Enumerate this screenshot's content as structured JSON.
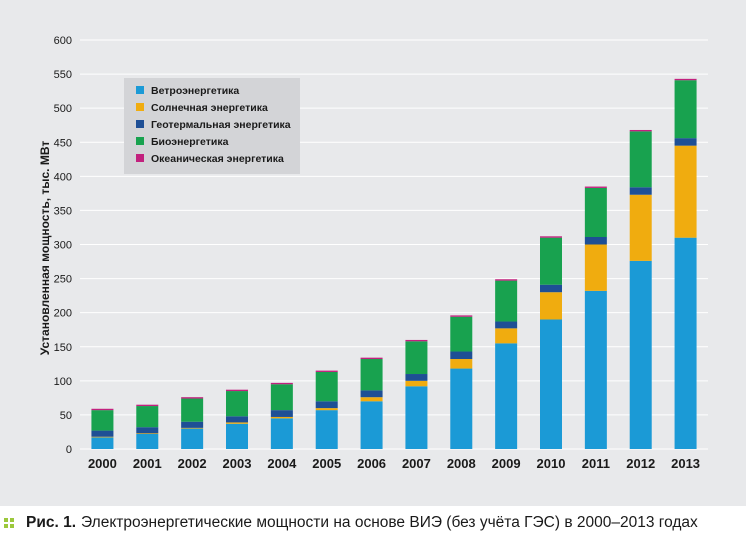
{
  "colors": {
    "wind": "#1b9ad6",
    "solar": "#f0ac0f",
    "geothermal": "#1e4f95",
    "bio": "#18a24f",
    "ocean": "#c2217e",
    "grid": "#ffffff",
    "legend_bg": "#d3d4d7",
    "caption_marker": "#9cc83c"
  },
  "caption": {
    "label": "Рис. 1.",
    "text": "Электроэнергетические мощности на основе ВИЭ (без учёта ГЭС) в 2000–2013 годах"
  },
  "chart_data": {
    "type": "bar",
    "stacked": true,
    "title": "",
    "xlabel": "",
    "ylabel": "Установленная мощность, тыс. МВт",
    "ylim": [
      0,
      600
    ],
    "yticks": [
      0,
      50,
      100,
      150,
      200,
      250,
      300,
      350,
      400,
      450,
      500,
      550,
      600
    ],
    "grid": true,
    "legend_position": "top-left",
    "categories": [
      "2000",
      "2001",
      "2002",
      "2003",
      "2004",
      "2005",
      "2006",
      "2007",
      "2008",
      "2009",
      "2010",
      "2011",
      "2012",
      "2013"
    ],
    "series": [
      {
        "name": "Ветроэнергетика",
        "color_key": "wind",
        "values": [
          17,
          22,
          30,
          37,
          45,
          57,
          70,
          92,
          118,
          155,
          190,
          232,
          276,
          310
        ]
      },
      {
        "name": "Солнечная энергетика",
        "color_key": "solar",
        "values": [
          1,
          1,
          1,
          2,
          2,
          3,
          6,
          8,
          14,
          22,
          40,
          68,
          97,
          135
        ]
      },
      {
        "name": "Геотермальная энергетика",
        "color_key": "geothermal",
        "values": [
          9,
          9,
          9,
          9,
          10,
          10,
          10,
          10,
          11,
          10,
          11,
          11,
          11,
          11
        ]
      },
      {
        "name": "Биоэнергетика",
        "color_key": "bio",
        "values": [
          30,
          31,
          34,
          37,
          38,
          43,
          46,
          48,
          51,
          60,
          69,
          72,
          82,
          85
        ]
      },
      {
        "name": "Океаническая энергетика",
        "color_key": "ocean",
        "values": [
          2,
          2,
          2,
          2,
          2,
          2,
          2,
          2,
          2,
          2,
          2,
          2,
          2,
          2
        ]
      }
    ]
  }
}
